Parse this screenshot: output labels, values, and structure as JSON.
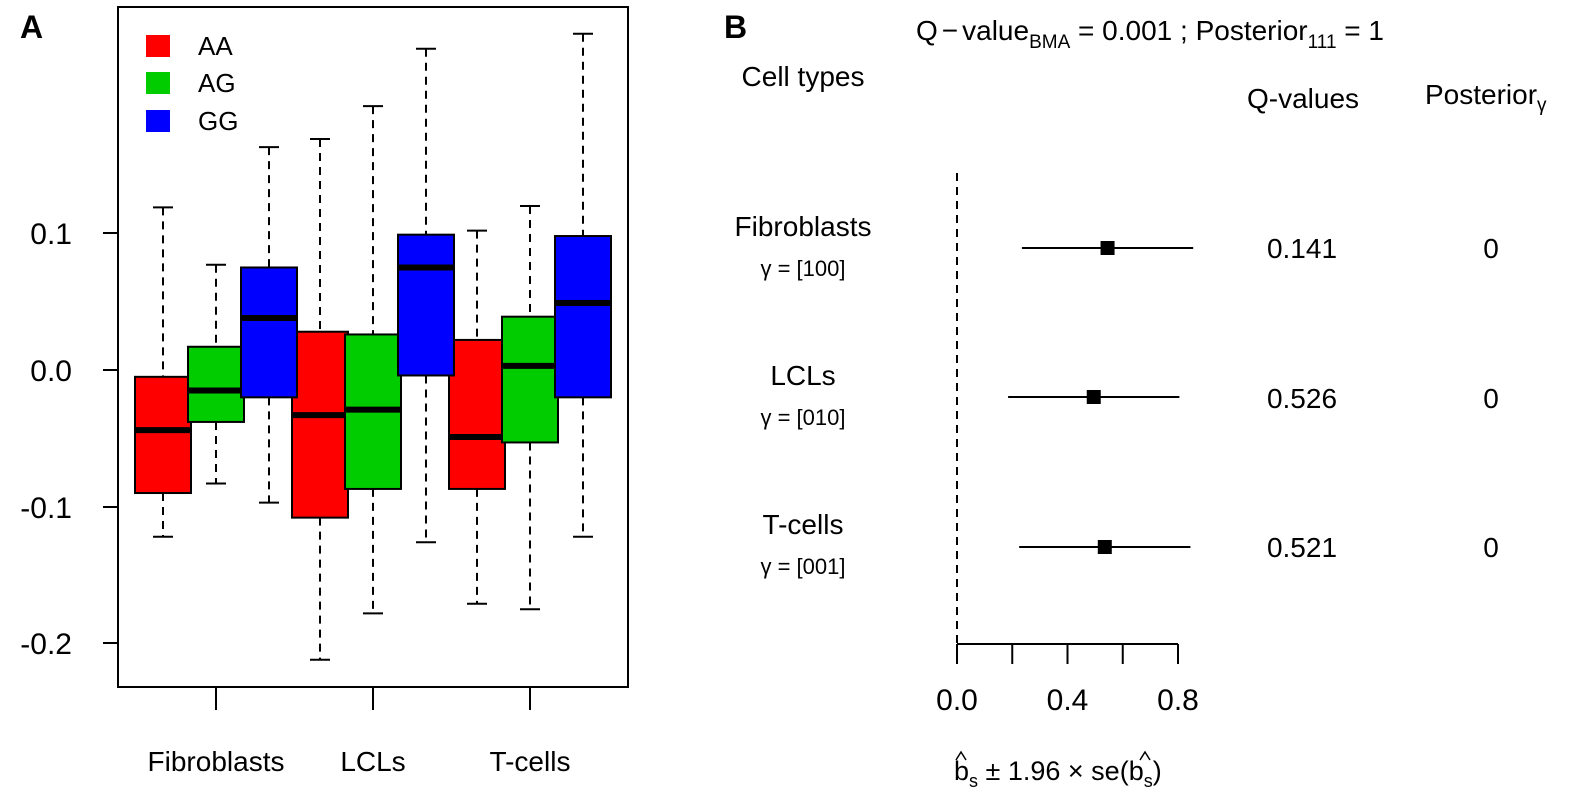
{
  "panel_a": {
    "label": "A",
    "legend": [
      {
        "name": "AA",
        "color": "#ff0000"
      },
      {
        "name": "AG",
        "color": "#00cc00"
      },
      {
        "name": "GG",
        "color": "#0000ff"
      }
    ]
  },
  "panel_b": {
    "label": "B",
    "title": {
      "q_prefix": "Q",
      "minus": "−",
      "value_word": "value",
      "q_sub": "BMA",
      "q_eq": " = 0.001 ; Posterior",
      "post_sub": "111",
      "post_eq": " = 1"
    },
    "header_cell_types": "Cell types",
    "header_qvalues": "Q-values",
    "header_posterior": "Posterior",
    "header_posterior_sub": "γ",
    "rows": [
      {
        "name": "Fibroblasts",
        "gamma": "γ = [100]",
        "qvalue": "0.141",
        "posterior": "0"
      },
      {
        "name": "LCLs",
        "gamma": "γ = [010]",
        "qvalue": "0.526",
        "posterior": "0"
      },
      {
        "name": "T-cells",
        "gamma": "γ = [001]",
        "qvalue": "0.521",
        "posterior": "0"
      }
    ],
    "xlabel": {
      "b": "b",
      "s": "s",
      "mid": " ± 1.96 × se(",
      "close": ")"
    }
  },
  "chart_data": [
    {
      "type": "box",
      "categories": [
        "Fibroblasts",
        "LCLs",
        "T-cells"
      ],
      "yticks": [
        "0.1",
        "0.0",
        "-0.1",
        "-0.2"
      ],
      "ytick_values": [
        0.1,
        0.0,
        -0.1,
        -0.2
      ],
      "ylim": [
        -0.233,
        0.265
      ],
      "legend_position": "top-left",
      "series": [
        {
          "name": "AA",
          "boxes": [
            {
              "whisker_low": -0.122,
              "q1": -0.09,
              "median": -0.044,
              "q3": -0.005,
              "whisker_high": 0.119
            },
            {
              "whisker_low": -0.212,
              "q1": -0.108,
              "median": -0.033,
              "q3": 0.028,
              "whisker_high": 0.169
            },
            {
              "whisker_low": -0.171,
              "q1": -0.087,
              "median": -0.049,
              "q3": 0.022,
              "whisker_high": 0.102
            }
          ]
        },
        {
          "name": "AG",
          "boxes": [
            {
              "whisker_low": -0.083,
              "q1": -0.038,
              "median": -0.015,
              "q3": 0.017,
              "whisker_high": 0.077
            },
            {
              "whisker_low": -0.178,
              "q1": -0.087,
              "median": -0.029,
              "q3": 0.026,
              "whisker_high": 0.193
            },
            {
              "whisker_low": -0.175,
              "q1": -0.053,
              "median": 0.003,
              "q3": 0.039,
              "whisker_high": 0.12
            }
          ]
        },
        {
          "name": "GG",
          "boxes": [
            {
              "whisker_low": -0.097,
              "q1": -0.02,
              "median": 0.038,
              "q3": 0.075,
              "whisker_high": 0.163
            },
            {
              "whisker_low": -0.126,
              "q1": -0.004,
              "median": 0.075,
              "q3": 0.099,
              "whisker_high": 0.235
            },
            {
              "whisker_low": -0.122,
              "q1": -0.02,
              "median": 0.049,
              "q3": 0.098,
              "whisker_high": 0.246
            }
          ]
        }
      ]
    },
    {
      "type": "forest",
      "categories": [
        "Fibroblasts",
        "LCLs",
        "T-cells"
      ],
      "estimates": [
        0.545,
        0.495,
        0.535
      ],
      "ci_low": [
        0.235,
        0.185,
        0.225
      ],
      "ci_high": [
        0.855,
        0.805,
        0.845
      ],
      "reference_line": 0.0,
      "xticks": [
        "0.0",
        "0.4",
        "0.8"
      ],
      "xtick_values": [
        0.0,
        0.2,
        0.4,
        0.6,
        0.8
      ],
      "xlabel_values": [
        0.0,
        0.4,
        0.8
      ]
    }
  ]
}
